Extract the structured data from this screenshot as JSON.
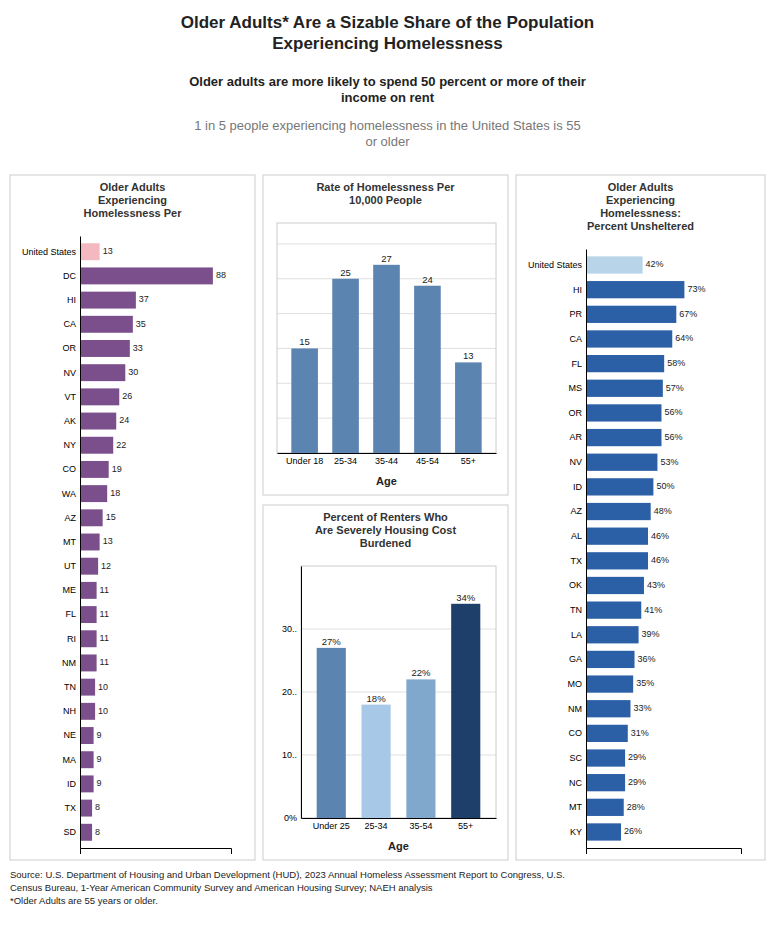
{
  "title": "Older Adults* Are a Sizable Share of the Population\nExperiencing Homelessness",
  "subtitle": [
    "Older adults are more likely to spend 50 percent or more of their\nincome on rent",
    "1 in 5 people experiencing homelessness in the United States is 55\nor older"
  ],
  "annotations": [
    "Source: U.S. Department of Housing and Urban Development (HUD), 2023 Annual Homeless Assessment Report to Congress, U.S.\nCensus Bureau, 1-Year American Community Survey and American Housing Survey; NAEH analysis\n*Older Adults are 55 years or older."
  ],
  "chart_data": [
    {
      "type": "bar",
      "orientation": "horizontal",
      "title": "Older Adults\nExperiencing\nHomelessness Per",
      "categories": [
        "United States",
        "DC",
        "HI",
        "CA",
        "OR",
        "NV",
        "VT",
        "AK",
        "NY",
        "CO",
        "WA",
        "AZ",
        "MT",
        "UT",
        "ME",
        "FL",
        "RI",
        "NM",
        "TN",
        "NH",
        "NE",
        "MA",
        "ID",
        "TX",
        "SD"
      ],
      "values": [
        13,
        88,
        37,
        35,
        33,
        30,
        26,
        24,
        22,
        19,
        18,
        15,
        13,
        12,
        11,
        11,
        11,
        11,
        10,
        10,
        9,
        9,
        9,
        8,
        8
      ],
      "colors": [
        "#F4B8C1",
        "#7B4F8C",
        "#7B4F8C",
        "#7B4F8C",
        "#7B4F8C",
        "#7B4F8C",
        "#7B4F8C",
        "#7B4F8C",
        "#7B4F8C",
        "#7B4F8C",
        "#7B4F8C",
        "#7B4F8C",
        "#7B4F8C",
        "#7B4F8C",
        "#7B4F8C",
        "#7B4F8C",
        "#7B4F8C",
        "#7B4F8C",
        "#7B4F8C",
        "#7B4F8C",
        "#7B4F8C",
        "#7B4F8C",
        "#7B4F8C",
        "#7B4F8C",
        "#7B4F8C"
      ],
      "xlim": [
        0,
        100
      ],
      "tick_labels": "y",
      "data_labels": true,
      "grid": false
    },
    {
      "type": "bar",
      "title": "Rate of Homelessness Per\n10,000 People",
      "x_label": "Age",
      "categories": [
        "Under 18",
        "25-34",
        "35-44",
        "45-54",
        "55+"
      ],
      "values": [
        15,
        25,
        27,
        24,
        13
      ],
      "color": "#5B84B1",
      "ylim": [
        0,
        33
      ],
      "yticks": [
        0,
        5,
        10,
        15,
        20,
        25,
        30
      ],
      "tick_labels": "x",
      "data_labels": true,
      "grid": true
    },
    {
      "type": "bar",
      "title": "Percent of Renters Who\nAre Severely Housing Cost\nBurdened",
      "x_label": "Age",
      "categories": [
        "Under 25",
        "25-34",
        "35-54",
        "55+"
      ],
      "values": [
        27,
        18,
        22,
        34
      ],
      "value_labels": [
        "27%",
        "18%",
        "22%",
        "34%"
      ],
      "colors": [
        "#5B84B1",
        "#A8C8E8",
        "#7FA8CC",
        "#1F3F6B"
      ],
      "ylim": [
        0,
        40
      ],
      "yticks": [
        {
          "value": 0,
          "label": "0%"
        },
        {
          "value": 10,
          "label": "10.."
        },
        {
          "value": 20,
          "label": "20.."
        },
        {
          "value": 30,
          "label": "30.."
        }
      ],
      "data_labels": true,
      "grid": true
    },
    {
      "type": "bar",
      "orientation": "horizontal",
      "title": "Older Adults\nExperiencing\nHomelessness:\nPercent Unsheltered",
      "categories": [
        "United States",
        "HI",
        "PR",
        "CA",
        "FL",
        "MS",
        "OR",
        "AR",
        "NV",
        "ID",
        "AZ",
        "AL",
        "TX",
        "OK",
        "TN",
        "LA",
        "GA",
        "MO",
        "NM",
        "CO",
        "SC",
        "NC",
        "MT",
        "KY"
      ],
      "values": [
        42,
        73,
        67,
        64,
        58,
        57,
        56,
        56,
        53,
        50,
        48,
        46,
        46,
        43,
        41,
        39,
        36,
        35,
        33,
        31,
        29,
        29,
        28,
        26
      ],
      "value_labels": [
        "42%",
        "73%",
        "67%",
        "64%",
        "58%",
        "57%",
        "56%",
        "56%",
        "53%",
        "50%",
        "48%",
        "46%",
        "46%",
        "43%",
        "41%",
        "39%",
        "36%",
        "35%",
        "33%",
        "31%",
        "29%",
        "29%",
        "28%",
        "26%"
      ],
      "colors": [
        "#B8D4E8",
        "#2B5FA6",
        "#2B5FA6",
        "#2B5FA6",
        "#2B5FA6",
        "#2B5FA6",
        "#2B5FA6",
        "#2B5FA6",
        "#2B5FA6",
        "#2B5FA6",
        "#2B5FA6",
        "#2B5FA6",
        "#2B5FA6",
        "#2B5FA6",
        "#2B5FA6",
        "#2B5FA6",
        "#2B5FA6",
        "#2B5FA6",
        "#2B5FA6",
        "#2B5FA6",
        "#2B5FA6",
        "#2B5FA6",
        "#2B5FA6",
        "#2B5FA6"
      ],
      "xlim": [
        0,
        115
      ],
      "tick_labels": "y",
      "data_labels": true,
      "grid": false
    }
  ]
}
